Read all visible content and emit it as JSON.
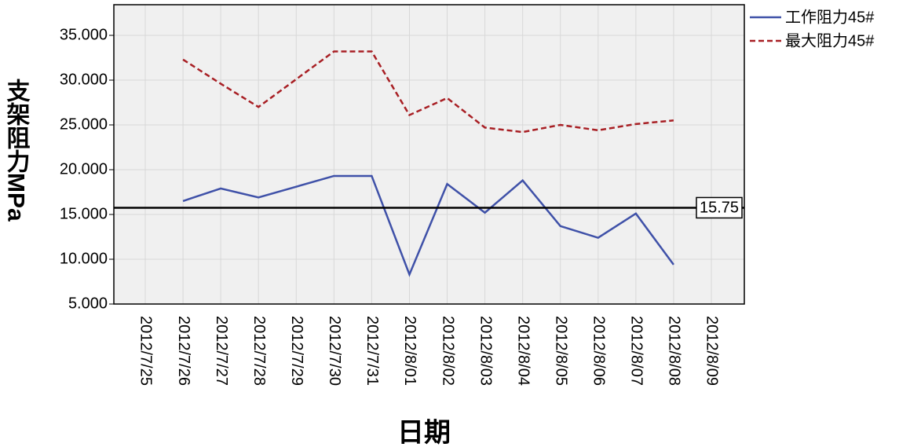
{
  "chart_data": {
    "type": "line",
    "categories": [
      "2012/7/25",
      "2012/7/26",
      "2012/7/27",
      "2012/7/28",
      "2012/7/29",
      "2012/7/30",
      "2012/7/31",
      "2012/8/01",
      "2012/8/02",
      "2012/8/03",
      "2012/8/04",
      "2012/8/05",
      "2012/8/06",
      "2012/8/07",
      "2012/8/08",
      "2012/8/09"
    ],
    "series": [
      {
        "name": "工作阻力45#",
        "color": "#3f51a8",
        "dash": "solid",
        "values": [
          null,
          16.5,
          17.9,
          16.9,
          18.1,
          19.3,
          19.3,
          8.3,
          18.4,
          15.2,
          18.8,
          13.7,
          12.4,
          15.1,
          9.4,
          null
        ]
      },
      {
        "name": "最大阻力45#",
        "color": "#a81f24",
        "dash": "dashed",
        "values": [
          null,
          32.3,
          29.6,
          27.0,
          30.1,
          33.2,
          33.2,
          26.1,
          28.0,
          24.7,
          24.2,
          25.0,
          24.4,
          25.1,
          25.5,
          null
        ]
      }
    ],
    "reference_line": {
      "value": 15.75,
      "label": "15.75"
    },
    "x_label": "日期",
    "y_label": "支架阻力MPa",
    "ylim": [
      5,
      38.42
    ],
    "yticks": [
      {
        "value": 5,
        "label": "5.000"
      },
      {
        "value": 10,
        "label": "10.000"
      },
      {
        "value": 15,
        "label": "15.000"
      },
      {
        "value": 20,
        "label": "20.000"
      },
      {
        "value": 25,
        "label": "25.000"
      },
      {
        "value": 30,
        "label": "30.000"
      },
      {
        "value": 35,
        "label": "35.000"
      }
    ],
    "grid": true,
    "legend": "right"
  }
}
